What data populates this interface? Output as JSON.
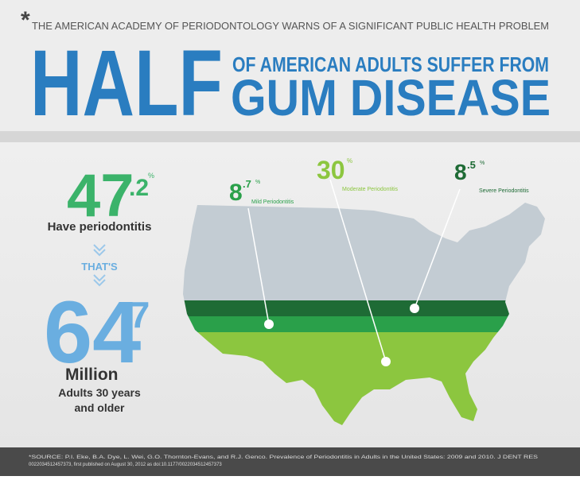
{
  "header": {
    "asterisk": "*",
    "kicker": "THE AMERICAN ACADEMY OF PERIODONTOLOGY WARNS OF A SIGNIFICANT PUBLIC HEALTH PROBLEM",
    "big": "HALF",
    "line1": "OF AMERICAN ADULTS SUFFER FROM",
    "line2": "GUM DISEASE"
  },
  "left": {
    "stat1": {
      "whole": "47",
      "decimal": ".2",
      "unit": "%"
    },
    "label1": "Have periodontitis",
    "connector": "THAT'S",
    "stat2": {
      "whole": "64",
      "decimal": ".7"
    },
    "label2": "Million",
    "label3": "Adults 30 years",
    "label4": "and older"
  },
  "map": {
    "segments": [
      {
        "whole": "8",
        "decimal": ".7",
        "unit": "%",
        "label": "Mild Periodontitis"
      },
      {
        "whole": "30",
        "unit": "%",
        "label": "Moderate Periodontitis"
      },
      {
        "whole": "8",
        "decimal": ".5",
        "unit": "%",
        "label": "Severe Periodontitis"
      }
    ]
  },
  "footer": {
    "line1": "*SOURCE: P.I. Eke, B.A. Dye, L. Wei, G.O. Thornton-Evans, and R.J. Genco. Prevalence of Periodontitis in Adults in the United States: 2009 and 2010. J DENT RES",
    "line2": "0022034512457373, first published on August 30, 2012 as doi:10.1177/0022034512457373"
  }
}
